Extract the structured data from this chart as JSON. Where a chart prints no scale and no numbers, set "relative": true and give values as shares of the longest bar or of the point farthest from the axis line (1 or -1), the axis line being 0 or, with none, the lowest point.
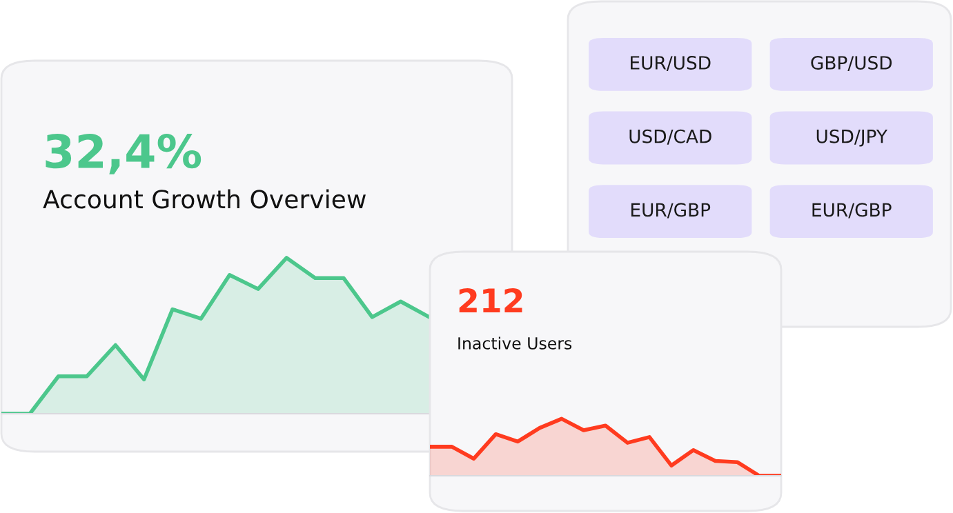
{
  "chart_data": [
    {
      "type": "area",
      "title": "32,4%",
      "subtitle": "Account Growth Overview",
      "relative": true,
      "categories": [
        null,
        null,
        null,
        null,
        null,
        null,
        null,
        null,
        null,
        null,
        null,
        null,
        null,
        null,
        null,
        null
      ],
      "series": [
        {
          "color": "#4cc78c",
          "values": [
            0,
            0,
            0.24,
            0.24,
            0.44,
            0.22,
            0.67,
            0.61,
            0.89,
            0.8,
            1,
            0.87,
            0.87,
            0.62,
            0.72,
            0.62
          ]
        }
      ]
    },
    {
      "type": "other",
      "annotations": [
        "EUR/USD",
        "GBP/USD",
        "USD/CAD",
        "USD/JPY",
        "EUR/GBP",
        "EUR/GBP"
      ]
    },
    {
      "type": "area",
      "title": "212",
      "subtitle": "Inactive Users",
      "relative": true,
      "categories": [
        null,
        null,
        null,
        null,
        null,
        null,
        null,
        null,
        null,
        null,
        null,
        null,
        null,
        null,
        null,
        null,
        null
      ],
      "series": [
        {
          "color": "#ff3b1f",
          "values": [
            0.51,
            0.51,
            0.3,
            0.73,
            0.6,
            0.84,
            1,
            0.8,
            0.88,
            0.58,
            0.68,
            0.18,
            0.45,
            0.26,
            0.24,
            0,
            0
          ]
        }
      ]
    }
  ]
}
